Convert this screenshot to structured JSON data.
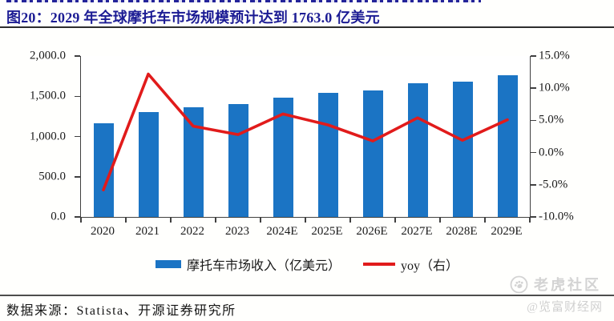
{
  "title": {
    "text": "图20：2029 年全球摩托车市场规模预计达到 1763.0 亿美元"
  },
  "chart_data": {
    "type": "bar",
    "subtype": "bar+line-combo",
    "categories": [
      "2020",
      "2021",
      "2022",
      "2023",
      "2024E",
      "2025E",
      "2026E",
      "2027E",
      "2028E",
      "2029E"
    ],
    "series": [
      {
        "name": "摩托车市场收入（亿美元）",
        "type": "bar",
        "axis": "left",
        "color": "#1B74C4",
        "values": [
          1160.0,
          1303.0,
          1363.0,
          1403.0,
          1482.0,
          1542.0,
          1575.0,
          1660.0,
          1681.0,
          1763.0
        ]
      },
      {
        "name": "yoy（右）",
        "type": "line",
        "axis": "right",
        "color": "#E11B1B",
        "values": [
          -5.8,
          12.2,
          4.1,
          2.8,
          6.0,
          4.3,
          1.8,
          5.4,
          1.9,
          5.1
        ]
      }
    ],
    "left_axis": {
      "min": 0,
      "max": 2000,
      "ticks": [
        {
          "label": "0.0",
          "value": 0
        },
        {
          "label": "500.0",
          "value": 500
        },
        {
          "label": "1,000.0",
          "value": 1000
        },
        {
          "label": "1,500.0",
          "value": 1500
        },
        {
          "label": "2,000.0",
          "value": 2000
        }
      ]
    },
    "right_axis": {
      "min": -10,
      "max": 15,
      "ticks": [
        {
          "label": "-10.0%",
          "value": -10
        },
        {
          "label": "-5.0%",
          "value": -5
        },
        {
          "label": "0.0%",
          "value": 0
        },
        {
          "label": "5.0%",
          "value": 5
        },
        {
          "label": "10.0%",
          "value": 10
        },
        {
          "label": "15.0%",
          "value": 15
        }
      ]
    },
    "grid": false,
    "legend_position": "bottom"
  },
  "source": {
    "text": "数据来源：Statista、开源证券研究所"
  },
  "watermark": {
    "community": "老虎社区",
    "handle": "@览富财经网"
  },
  "colors": {
    "title": "#1C1C94",
    "bar": "#1B74C4",
    "line": "#E11B1B",
    "axis": "#404040",
    "watermark": "#D3D3D3"
  }
}
